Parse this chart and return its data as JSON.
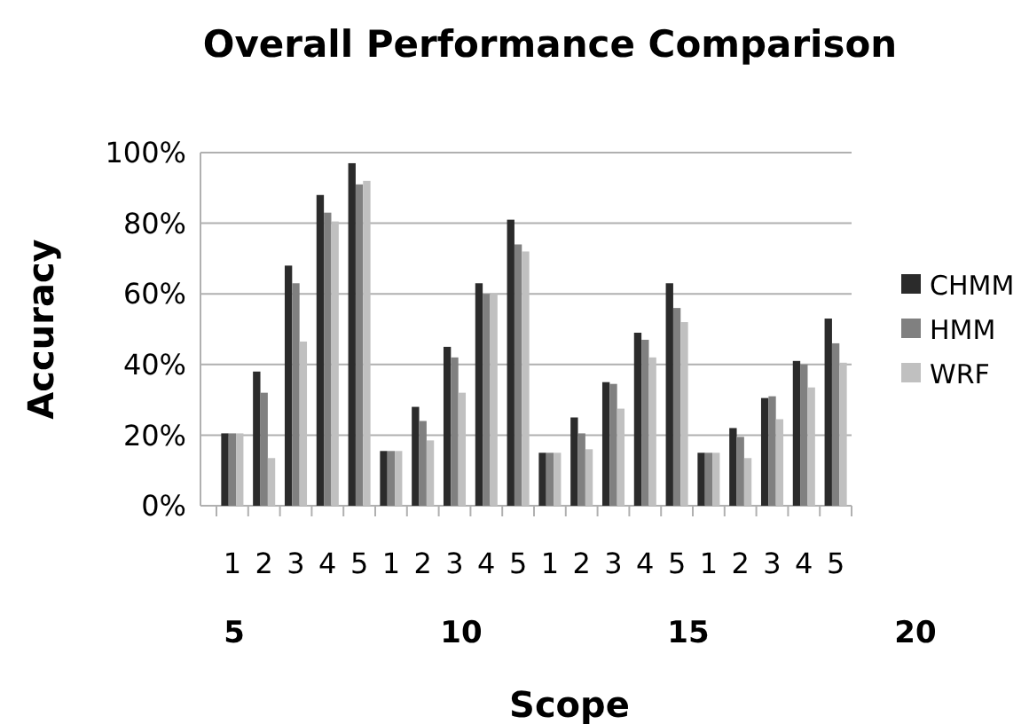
{
  "chart_data": {
    "type": "bar",
    "title": "Overall  Performance Comparison",
    "xlabel": "Scope",
    "ylabel": "Accuracy",
    "categories": [
      "1",
      "2",
      "3",
      "4",
      "5",
      "1",
      "2",
      "3",
      "4",
      "5",
      "1",
      "2",
      "3",
      "4",
      "5",
      "1",
      "2",
      "3",
      "4",
      "5"
    ],
    "series": [
      {
        "name": "CHMM",
        "color": "#2b2b2b",
        "values": [
          20.5,
          38,
          68,
          88,
          97,
          15.5,
          28,
          45,
          63,
          81,
          15,
          25,
          35,
          49,
          63,
          15,
          22,
          30.5,
          41,
          53
        ]
      },
      {
        "name": "HMM",
        "color": "#808080",
        "values": [
          20.5,
          32,
          63,
          83,
          91,
          15.5,
          24,
          42,
          60,
          74,
          15,
          20.5,
          34.5,
          47,
          56,
          15,
          19.5,
          31,
          40,
          46
        ]
      },
      {
        "name": "WRF",
        "color": "#c0c0c0",
        "values": [
          20.5,
          13.5,
          46.5,
          80.5,
          92,
          15.5,
          18.5,
          32,
          60,
          72,
          15,
          16,
          27.5,
          42,
          52,
          15,
          13.5,
          24.5,
          33.5,
          40.5
        ]
      }
    ],
    "ylim": [
      0,
      100
    ],
    "yticks": [
      {
        "value": 0,
        "label": "0%"
      },
      {
        "value": 20,
        "label": "20%"
      },
      {
        "value": 40,
        "label": "40%"
      },
      {
        "value": 60,
        "label": "60%"
      },
      {
        "value": 80,
        "label": "80%"
      },
      {
        "value": 100,
        "label": "100%"
      }
    ],
    "grid": "y",
    "legend": "right",
    "annotations": [
      "5",
      "10",
      "15",
      "20"
    ]
  }
}
